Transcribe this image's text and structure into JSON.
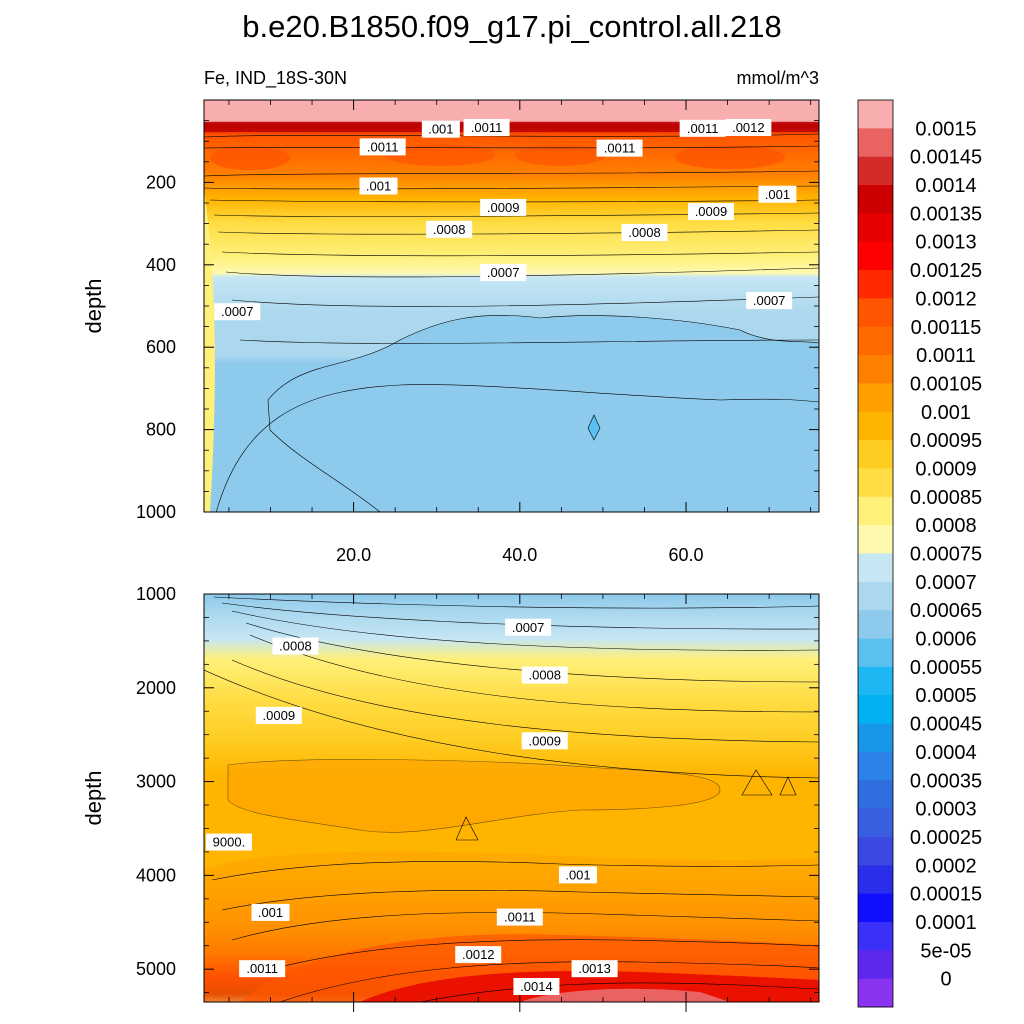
{
  "chart_data": {
    "type": "filled-contour",
    "title": "b.e20.B1850.f09_g17.pi_control.all.218",
    "left_subtitle": "Fe, IND_18S-30N",
    "right_subtitle": "mmol/m^3",
    "xlabel": "",
    "ylabel": "depth",
    "xlim": [
      2,
      76
    ],
    "x_ticks": [
      "20.0",
      "40.0",
      "60.0"
    ],
    "x_tick_values": [
      20,
      40,
      60
    ],
    "panels": [
      {
        "name": "upper",
        "ylim": [
          0,
          1000
        ],
        "y_ticks": [
          "200",
          "400",
          "600",
          "800",
          "1000"
        ],
        "y_tick_values": [
          200,
          400,
          600,
          800,
          1000
        ],
        "contour_labels": [
          {
            "text": ".001",
            "x": 30.5,
            "y": 72
          },
          {
            "text": ".0011",
            "x": 36,
            "y": 68
          },
          {
            "text": ".0011",
            "x": 62,
            "y": 70
          },
          {
            "text": ".0012",
            "x": 67.5,
            "y": 68
          },
          {
            "text": ".0011",
            "x": 23.5,
            "y": 115
          },
          {
            "text": ".0011",
            "x": 52,
            "y": 118
          },
          {
            "text": ".001",
            "x": 23,
            "y": 210
          },
          {
            "text": ".001",
            "x": 71,
            "y": 230
          },
          {
            "text": ".0009",
            "x": 38,
            "y": 262
          },
          {
            "text": ".0009",
            "x": 63,
            "y": 272
          },
          {
            "text": ".0008",
            "x": 31.5,
            "y": 315
          },
          {
            "text": ".0008",
            "x": 55,
            "y": 323
          },
          {
            "text": ".0007",
            "x": 38,
            "y": 420
          },
          {
            "text": ".0007",
            "x": 6,
            "y": 515
          },
          {
            "text": ".0007",
            "x": 70,
            "y": 488
          }
        ]
      },
      {
        "name": "lower",
        "ylim": [
          1000,
          5350
        ],
        "y_ticks": [
          "1000",
          "2000",
          "3000",
          "4000",
          "5000"
        ],
        "y_tick_values": [
          1000,
          2000,
          3000,
          4000,
          5000
        ],
        "contour_labels": [
          {
            "text": ".0007",
            "x": 41,
            "y": 1360
          },
          {
            "text": ".0008",
            "x": 13,
            "y": 1560
          },
          {
            "text": ".0008",
            "x": 43,
            "y": 1870
          },
          {
            "text": ".0009",
            "x": 11,
            "y": 2300
          },
          {
            "text": ".0009",
            "x": 43,
            "y": 2570
          },
          {
            "text": "9000.",
            "x": 5,
            "y": 3650
          },
          {
            "text": ".001",
            "x": 10,
            "y": 4400
          },
          {
            "text": ".001",
            "x": 47,
            "y": 4000
          },
          {
            "text": ".0011",
            "x": 40,
            "y": 4450
          },
          {
            "text": ".0011",
            "x": 9,
            "y": 5000
          },
          {
            "text": ".0012",
            "x": 35,
            "y": 4850
          },
          {
            "text": ".0013",
            "x": 49,
            "y": 5000
          },
          {
            "text": ".0014",
            "x": 42,
            "y": 5190
          }
        ]
      }
    ],
    "colorbar": {
      "labels": [
        "0.0015",
        "0.00145",
        "0.0014",
        "0.00135",
        "0.0013",
        "0.00125",
        "0.0012",
        "0.00115",
        "0.0011",
        "0.00105",
        "0.001",
        "0.00095",
        "0.0009",
        "0.00085",
        "0.0008",
        "0.00075",
        "0.0007",
        "0.00065",
        "0.0006",
        "0.00055",
        "0.0005",
        "0.00045",
        "0.0004",
        "0.00035",
        "0.0003",
        "0.00025",
        "0.0002",
        "0.00015",
        "0.0001",
        "5e-05",
        "0"
      ],
      "colors": [
        "#f8aeae",
        "#e96363",
        "#d42a2a",
        "#cc0000",
        "#e60000",
        "#ff0000",
        "#ff2a00",
        "#ff5500",
        "#ff6a00",
        "#ff8000",
        "#ffa000",
        "#ffb400",
        "#ffcc22",
        "#ffdd44",
        "#fff07a",
        "#fff9b0",
        "#c6e6f4",
        "#abd8ee",
        "#8ecaec",
        "#5ac0ef",
        "#1fb6f4",
        "#00b0f0",
        "#1896e8",
        "#2c82e6",
        "#306ee0",
        "#3a5ee0",
        "#3a4ae0",
        "#2a2ee8",
        "#1010ff",
        "#3a30f8",
        "#5d28ee",
        "#8a33ee"
      ]
    }
  }
}
